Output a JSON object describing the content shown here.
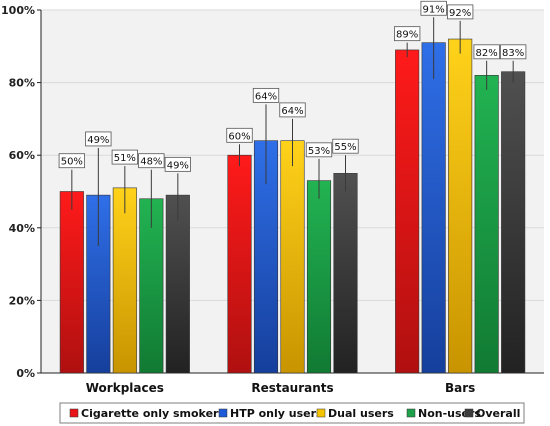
{
  "chart_data": {
    "type": "bar",
    "categories": [
      "Workplaces",
      "Restaurants",
      "Bars"
    ],
    "series": [
      {
        "name": "Cigarette only smokers",
        "values": [
          50,
          60,
          89
        ],
        "err_low": [
          45,
          57,
          87
        ],
        "err_high": [
          56,
          63,
          91
        ],
        "color": "#e8141a"
      },
      {
        "name": "HTP only users",
        "values": [
          49,
          64,
          91
        ],
        "err_low": [
          35,
          52,
          81
        ],
        "err_high": [
          62,
          74,
          98
        ],
        "color": "#1f5bd6"
      },
      {
        "name": "Dual users",
        "values": [
          51,
          64,
          92
        ],
        "err_low": [
          44,
          57,
          88
        ],
        "err_high": [
          57,
          70,
          97
        ],
        "color": "#f5c400"
      },
      {
        "name": "Non-users",
        "values": [
          48,
          53,
          82
        ],
        "err_low": [
          40,
          48,
          78
        ],
        "err_high": [
          56,
          59,
          86
        ],
        "color": "#1fa04a"
      },
      {
        "name": "Overall",
        "values": [
          49,
          55,
          83
        ],
        "err_low": [
          42,
          50,
          80
        ],
        "err_high": [
          55,
          60,
          86
        ],
        "color": "#3c3c3c"
      }
    ],
    "data_labels": [
      [
        "50%",
        "49%",
        "51%",
        "48%",
        "49%"
      ],
      [
        "60%",
        "64%",
        "64%",
        "53%",
        "55%"
      ],
      [
        "89%",
        "91%",
        "92%",
        "82%",
        "83%"
      ]
    ],
    "y_ticks": [
      "0%",
      "20%",
      "40%",
      "60%",
      "80%",
      "100%"
    ],
    "y_tick_values": [
      0,
      20,
      40,
      60,
      80,
      100
    ],
    "ylim": [
      0,
      100
    ],
    "grid": true,
    "legend_position": "bottom"
  }
}
